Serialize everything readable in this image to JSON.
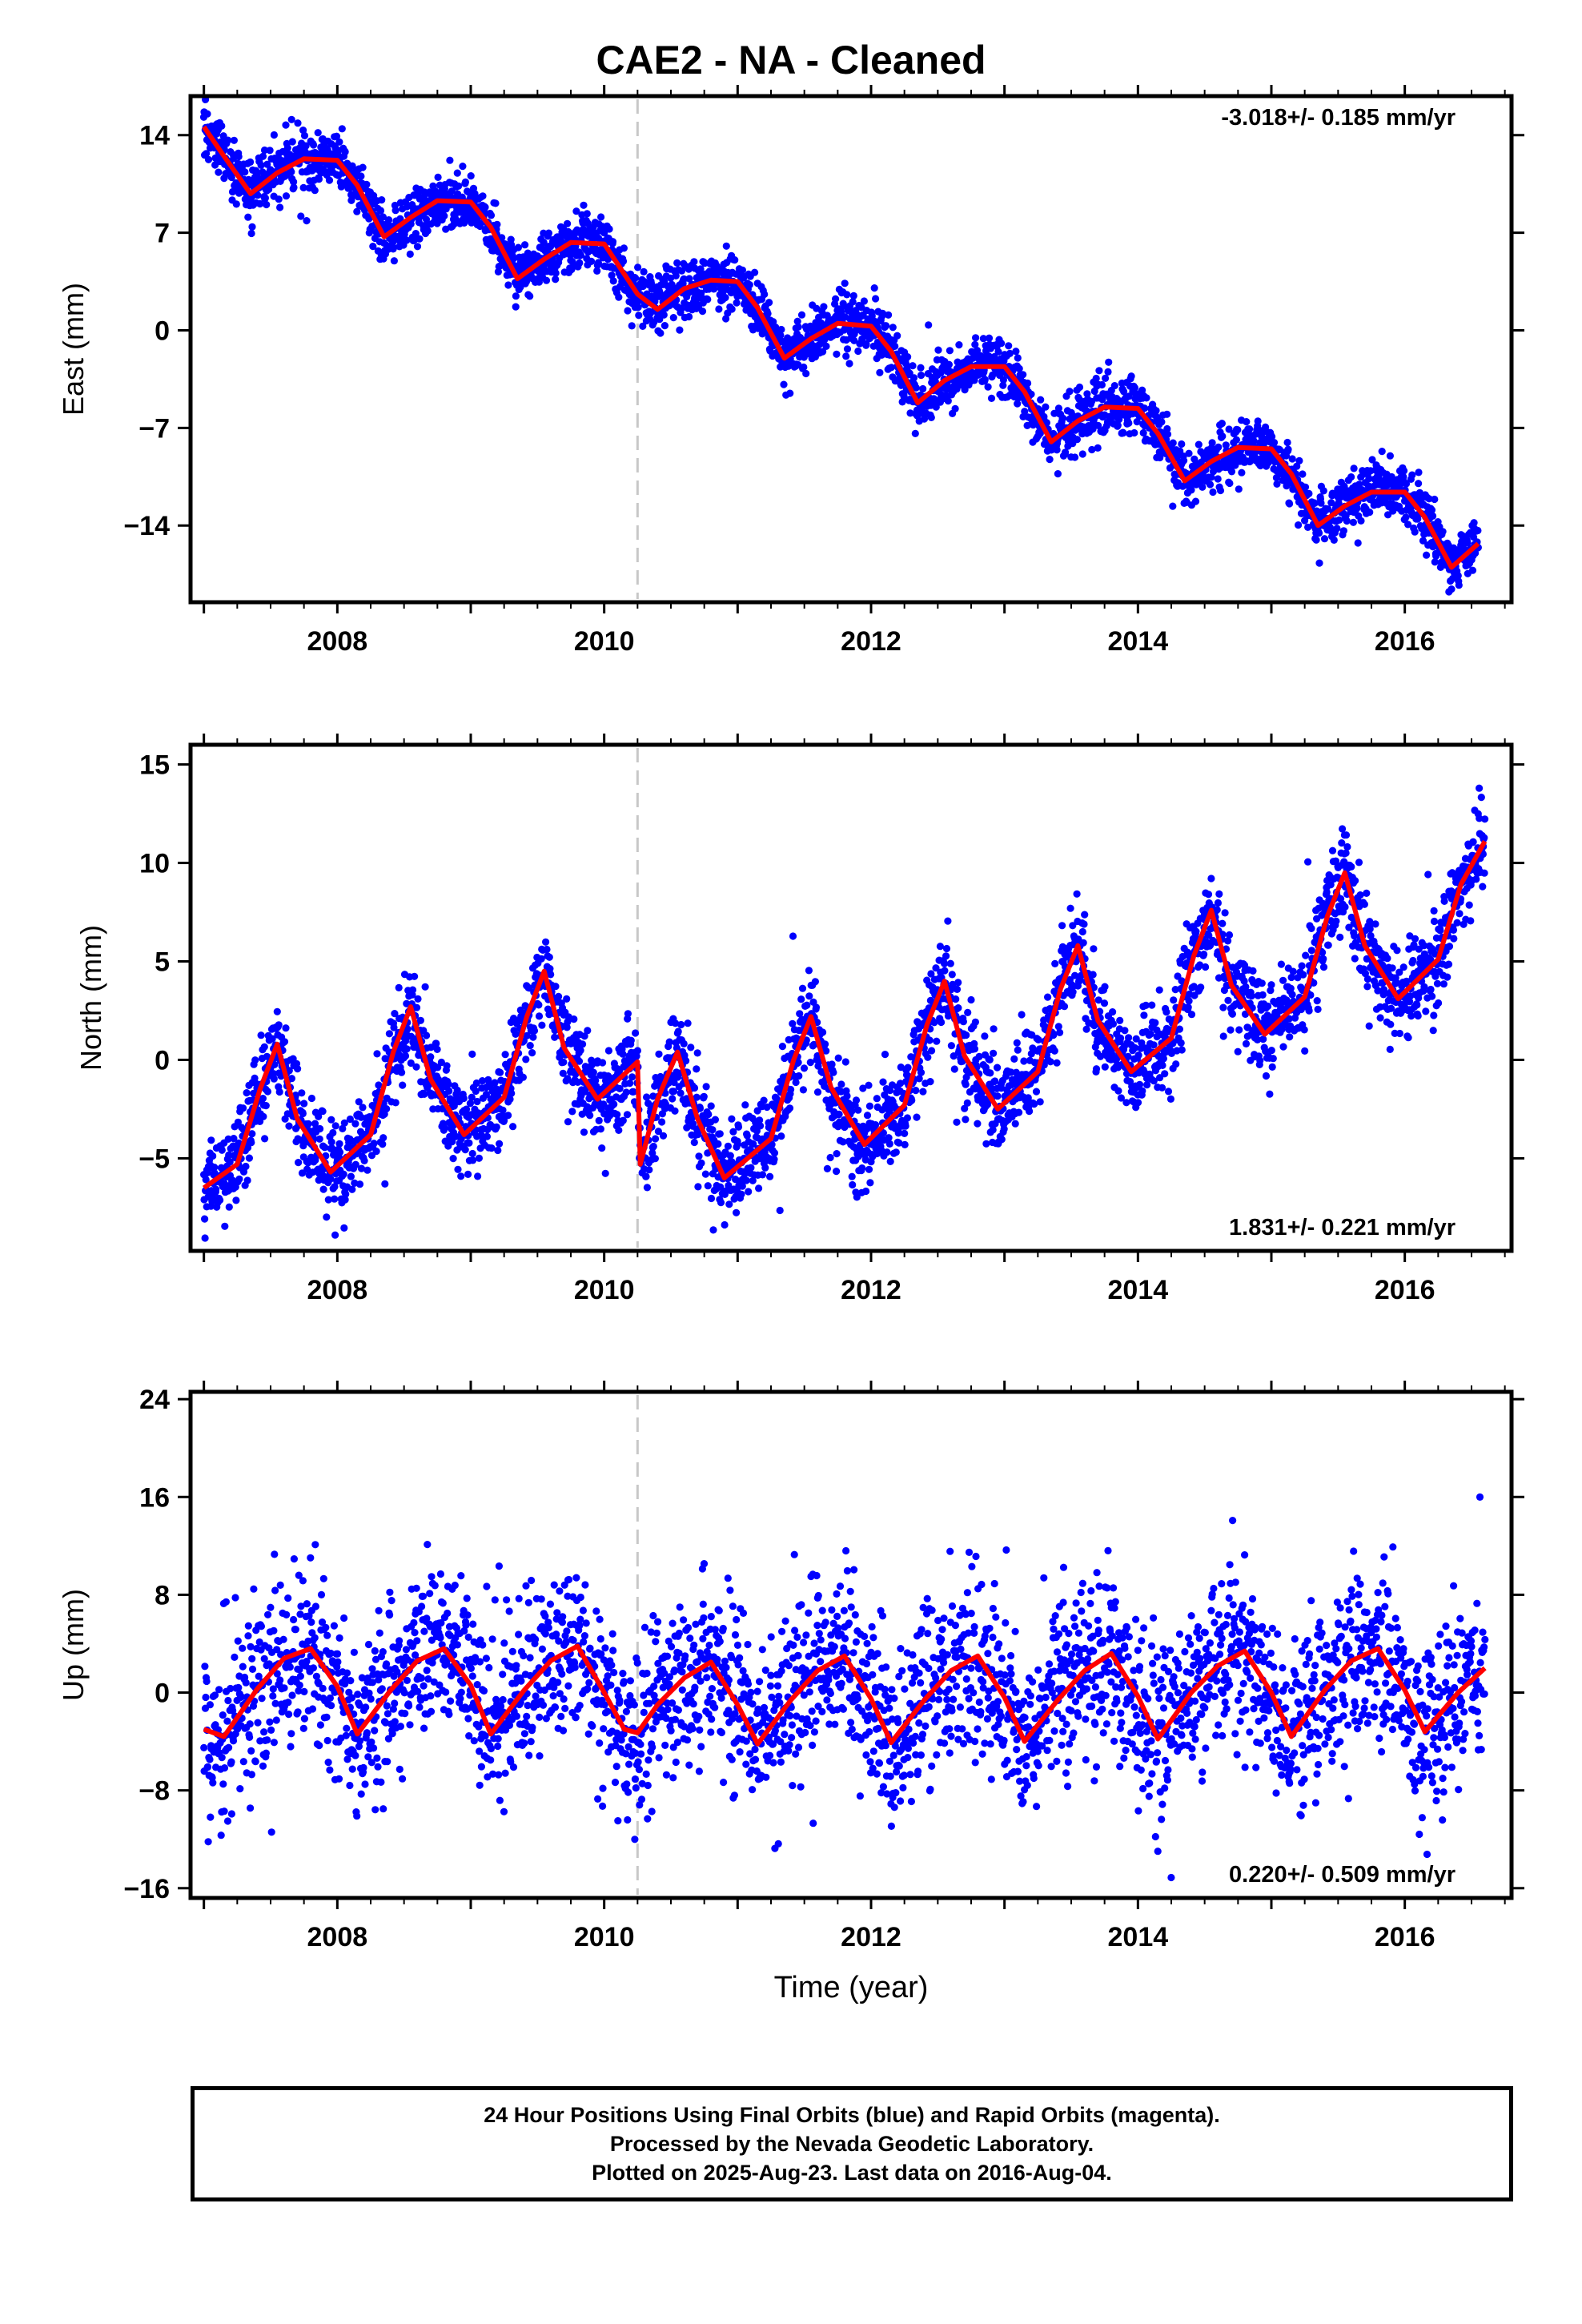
{
  "title": "CAE2  - NA - Cleaned",
  "colors": {
    "points": "#0000ff",
    "model": "#ff0000",
    "break_line": "#c8c8c8",
    "frame": "#000000"
  },
  "chart_data": [
    {
      "type": "scatter",
      "panel": "east",
      "ylabel": "East (mm)",
      "xlabel": "",
      "xlim": [
        2006.9,
        2016.8
      ],
      "ylim": [
        -19.5,
        16.8
      ],
      "yticks": [
        14,
        7,
        0,
        -7,
        -14
      ],
      "ytick_labels": [
        "14",
        "7",
        "0",
        "−7",
        "−14"
      ],
      "xticks": [
        2008,
        2010,
        2012,
        2014,
        2016
      ],
      "xtick_labels": [
        "2008",
        "2010",
        "2012",
        "2014",
        "2016"
      ],
      "rate_label": "-3.018+/- 0.185 mm/yr",
      "rate_label_position": "top-right",
      "break_epoch": 2010.25,
      "series": [
        {
          "kind": "model_curve",
          "x": [
            2007.0,
            2007.15,
            2007.35,
            2007.55,
            2007.75,
            2008.0,
            2008.15,
            2008.35,
            2008.55,
            2008.75,
            2009.0,
            2009.15,
            2009.35,
            2009.55,
            2009.75,
            2010.0,
            2010.25,
            2010.4,
            2010.6,
            2010.8,
            2011.0,
            2011.15,
            2011.35,
            2011.55,
            2011.75,
            2012.0,
            2012.15,
            2012.35,
            2012.55,
            2012.75,
            2013.0,
            2013.15,
            2013.35,
            2013.55,
            2013.75,
            2014.0,
            2014.15,
            2014.35,
            2014.55,
            2014.75,
            2015.0,
            2015.15,
            2015.35,
            2015.55,
            2015.75,
            2016.0,
            2016.15,
            2016.35,
            2016.55
          ],
          "y": [
            14.6,
            12.5,
            9.8,
            11.3,
            12.3,
            12.2,
            10.4,
            6.7,
            8.1,
            9.3,
            9.2,
            7.4,
            3.7,
            5.1,
            6.3,
            6.2,
            2.6,
            1.5,
            3.0,
            3.6,
            3.5,
            1.6,
            -2.0,
            -0.6,
            0.5,
            0.3,
            -1.5,
            -5.2,
            -3.6,
            -2.6,
            -2.6,
            -4.4,
            -8.0,
            -6.5,
            -5.5,
            -5.6,
            -7.4,
            -10.8,
            -9.4,
            -8.4,
            -8.5,
            -10.3,
            -14.0,
            -12.6,
            -11.6,
            -11.6,
            -13.4,
            -17.0,
            -15.3
          ]
        },
        {
          "kind": "daily_positions",
          "count": 3300,
          "rms_mm": 1.0
        }
      ]
    },
    {
      "type": "scatter",
      "panel": "north",
      "ylabel": "North (mm)",
      "xlabel": "",
      "xlim": [
        2006.9,
        2016.8
      ],
      "ylim": [
        -9.7,
        16.0
      ],
      "yticks": [
        15,
        10,
        5,
        0,
        -5
      ],
      "ytick_labels": [
        "15",
        "10",
        "5",
        "0",
        "−5"
      ],
      "xticks": [
        2008,
        2010,
        2012,
        2014,
        2016
      ],
      "xtick_labels": [
        "2008",
        "2010",
        "2012",
        "2014",
        "2016"
      ],
      "rate_label": "1.831+/- 0.221 mm/yr",
      "rate_label_position": "bottom-right",
      "break_epoch": 2010.25,
      "series": [
        {
          "kind": "model_curve",
          "x": [
            2007.0,
            2007.25,
            2007.42,
            2007.55,
            2007.7,
            2007.95,
            2008.25,
            2008.42,
            2008.55,
            2008.7,
            2008.95,
            2009.25,
            2009.42,
            2009.55,
            2009.7,
            2009.95,
            2010.25,
            2010.27,
            2010.4,
            2010.55,
            2010.7,
            2010.9,
            2011.25,
            2011.42,
            2011.55,
            2011.7,
            2011.95,
            2012.25,
            2012.42,
            2012.55,
            2012.7,
            2012.95,
            2013.25,
            2013.42,
            2013.55,
            2013.7,
            2013.95,
            2014.25,
            2014.42,
            2014.55,
            2014.7,
            2014.95,
            2015.25,
            2015.42,
            2015.55,
            2015.7,
            2015.95,
            2016.25,
            2016.42,
            2016.6
          ],
          "y": [
            -6.5,
            -5.3,
            -1.5,
            0.8,
            -3.0,
            -5.7,
            -3.8,
            0.4,
            2.7,
            -1.0,
            -3.8,
            -1.9,
            2.2,
            4.5,
            0.6,
            -2.0,
            -0.1,
            -5.3,
            -2.0,
            0.4,
            -3.0,
            -6.0,
            -4.0,
            0.0,
            2.2,
            -1.4,
            -4.3,
            -2.3,
            1.8,
            4.0,
            0.2,
            -2.5,
            -0.6,
            3.6,
            5.8,
            2.0,
            -0.6,
            1.1,
            5.3,
            7.6,
            3.8,
            1.3,
            3.2,
            7.3,
            9.5,
            5.8,
            3.1,
            5.1,
            8.9,
            11.1
          ]
        },
        {
          "kind": "daily_positions",
          "count": 3300,
          "rms_mm": 1.2
        }
      ]
    },
    {
      "type": "scatter",
      "panel": "up",
      "ylabel": "Up (mm)",
      "xlabel": "Time (year)",
      "xlim": [
        2006.9,
        2016.8
      ],
      "ylim": [
        -16.8,
        24.6
      ],
      "yticks": [
        24,
        16,
        8,
        0,
        -8,
        -16
      ],
      "ytick_labels": [
        "24",
        "16",
        "8",
        "0",
        "−8",
        "−16"
      ],
      "xticks": [
        2008,
        2010,
        2012,
        2014,
        2016
      ],
      "xtick_labels": [
        "2008",
        "2010",
        "2012",
        "2014",
        "2016"
      ],
      "rate_label": "0.220+/- 0.509 mm/yr",
      "rate_label_position": "bottom-right",
      "break_epoch": 2010.25,
      "series": [
        {
          "kind": "model_curve",
          "x": [
            2007.0,
            2007.15,
            2007.4,
            2007.6,
            2007.8,
            2008.0,
            2008.15,
            2008.4,
            2008.6,
            2008.8,
            2009.0,
            2009.15,
            2009.4,
            2009.6,
            2009.8,
            2010.0,
            2010.15,
            2010.25,
            2010.4,
            2010.6,
            2010.8,
            2011.0,
            2011.15,
            2011.4,
            2011.6,
            2011.8,
            2012.0,
            2012.15,
            2012.4,
            2012.6,
            2012.8,
            2013.0,
            2013.15,
            2013.4,
            2013.6,
            2013.8,
            2014.0,
            2014.15,
            2014.4,
            2014.6,
            2014.8,
            2015.0,
            2015.15,
            2015.4,
            2015.6,
            2015.8,
            2016.0,
            2016.15,
            2016.4,
            2016.6
          ],
          "y": [
            -3.0,
            -3.6,
            0.3,
            2.8,
            3.6,
            0.5,
            -3.4,
            0.2,
            2.6,
            3.6,
            0.6,
            -3.4,
            0.2,
            2.6,
            3.8,
            0.0,
            -3.0,
            -3.3,
            -1.0,
            1.2,
            2.5,
            -1.0,
            -4.2,
            -0.6,
            1.8,
            3.0,
            -0.5,
            -4.1,
            -0.6,
            1.8,
            3.0,
            -0.4,
            -4.0,
            -0.6,
            1.8,
            3.2,
            -0.3,
            -3.8,
            0.0,
            2.2,
            3.4,
            0.0,
            -3.6,
            0.2,
            2.6,
            3.6,
            0.2,
            -3.2,
            0.0,
            2.0
          ]
        },
        {
          "kind": "daily_positions",
          "count": 2900,
          "rms_mm": 3.5
        }
      ]
    }
  ],
  "footer": {
    "line1": "24 Hour Positions Using Final Orbits (blue) and Rapid Orbits (magenta).",
    "line2": "Processed by the Nevada Geodetic Laboratory.",
    "line3": "Plotted on 2025-Aug-23. Last data on 2016-Aug-04."
  }
}
